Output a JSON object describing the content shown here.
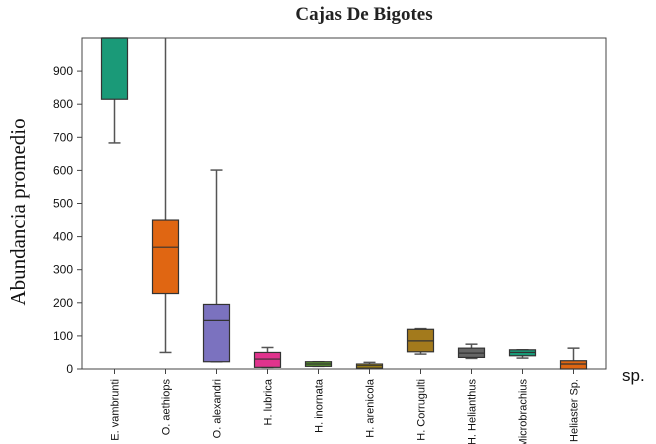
{
  "chart_data": {
    "type": "boxplot",
    "title": "Cajas De Bigotes",
    "ylabel": "Abundancia promedio",
    "xlabel": "sp.",
    "ylim": [
      0,
      1000
    ],
    "yticks": [
      0,
      100,
      200,
      300,
      400,
      500,
      600,
      700,
      800,
      900
    ],
    "boxes": [
      {
        "category": "E. vambrunti",
        "color": "#1a9a78",
        "min": 683,
        "q1": 815,
        "median": 1000,
        "q3": 1000,
        "max": 1000
      },
      {
        "category": "O. aethiops",
        "color": "#e06612",
        "min": 50,
        "q1": 228,
        "median": 368,
        "q3": 450,
        "max": 1000
      },
      {
        "category": "O. alexandri",
        "color": "#7b72bf",
        "min": 22,
        "q1": 22,
        "median": 147,
        "q3": 195,
        "max": 601
      },
      {
        "category": "H. lubrica",
        "color": "#e0338d",
        "min": 5,
        "q1": 5,
        "median": 30,
        "q3": 50,
        "max": 65
      },
      {
        "category": "H. inornata",
        "color": "#5a9a30",
        "min": 8,
        "q1": 8,
        "median": 15,
        "q3": 22,
        "max": 22
      },
      {
        "category": "H. arenicola",
        "color": "#b8940e",
        "min": 3,
        "q1": 3,
        "median": 10,
        "q3": 15,
        "max": 20
      },
      {
        "category": "H. Corrugulti",
        "color": "#a37a1c",
        "min": 45,
        "q1": 52,
        "median": 85,
        "q3": 120,
        "max": 122
      },
      {
        "category": "H. Helianthus",
        "color": "#666666",
        "min": 32,
        "q1": 35,
        "median": 48,
        "q3": 63,
        "max": 75
      },
      {
        "category": "Microbrachius",
        "color": "#1a9a78",
        "min": 33,
        "q1": 40,
        "median": 50,
        "q3": 58,
        "max": 58
      },
      {
        "category": "Heliaster Sp.",
        "color": "#e06612",
        "min": 0,
        "q1": 0,
        "median": 15,
        "q3": 25,
        "max": 63
      }
    ]
  }
}
